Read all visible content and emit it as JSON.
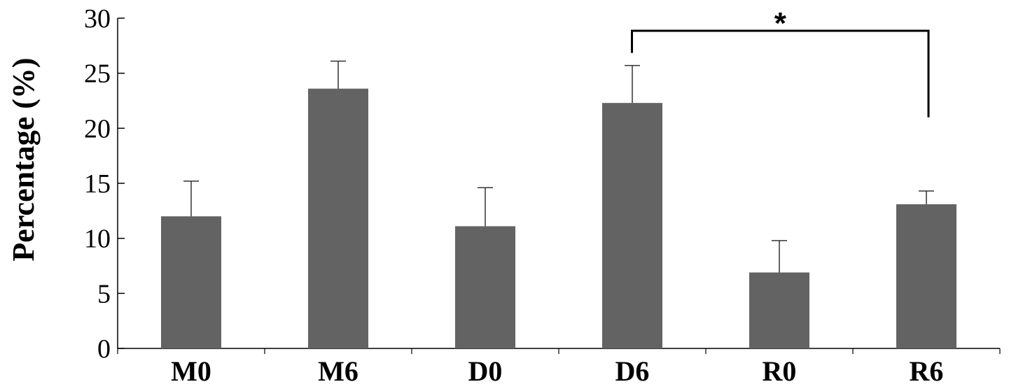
{
  "chart_data": {
    "type": "bar",
    "title": "",
    "xlabel": "",
    "ylabel": "Percentage (%)",
    "ylim": [
      0,
      30
    ],
    "yticks": [
      0,
      5,
      10,
      15,
      20,
      25,
      30
    ],
    "grid": false,
    "legend": "none",
    "bar_color": "#636363",
    "categories": [
      "M0",
      "M6",
      "D0",
      "D6",
      "R0",
      "R6"
    ],
    "values": [
      12.0,
      23.6,
      11.1,
      22.3,
      6.9,
      13.1
    ],
    "error_upper": [
      3.2,
      2.5,
      3.5,
      3.4,
      2.9,
      1.2
    ],
    "annotations": [
      {
        "type": "significance-bracket",
        "from": "D6",
        "to": "R6",
        "label": "*"
      }
    ]
  }
}
